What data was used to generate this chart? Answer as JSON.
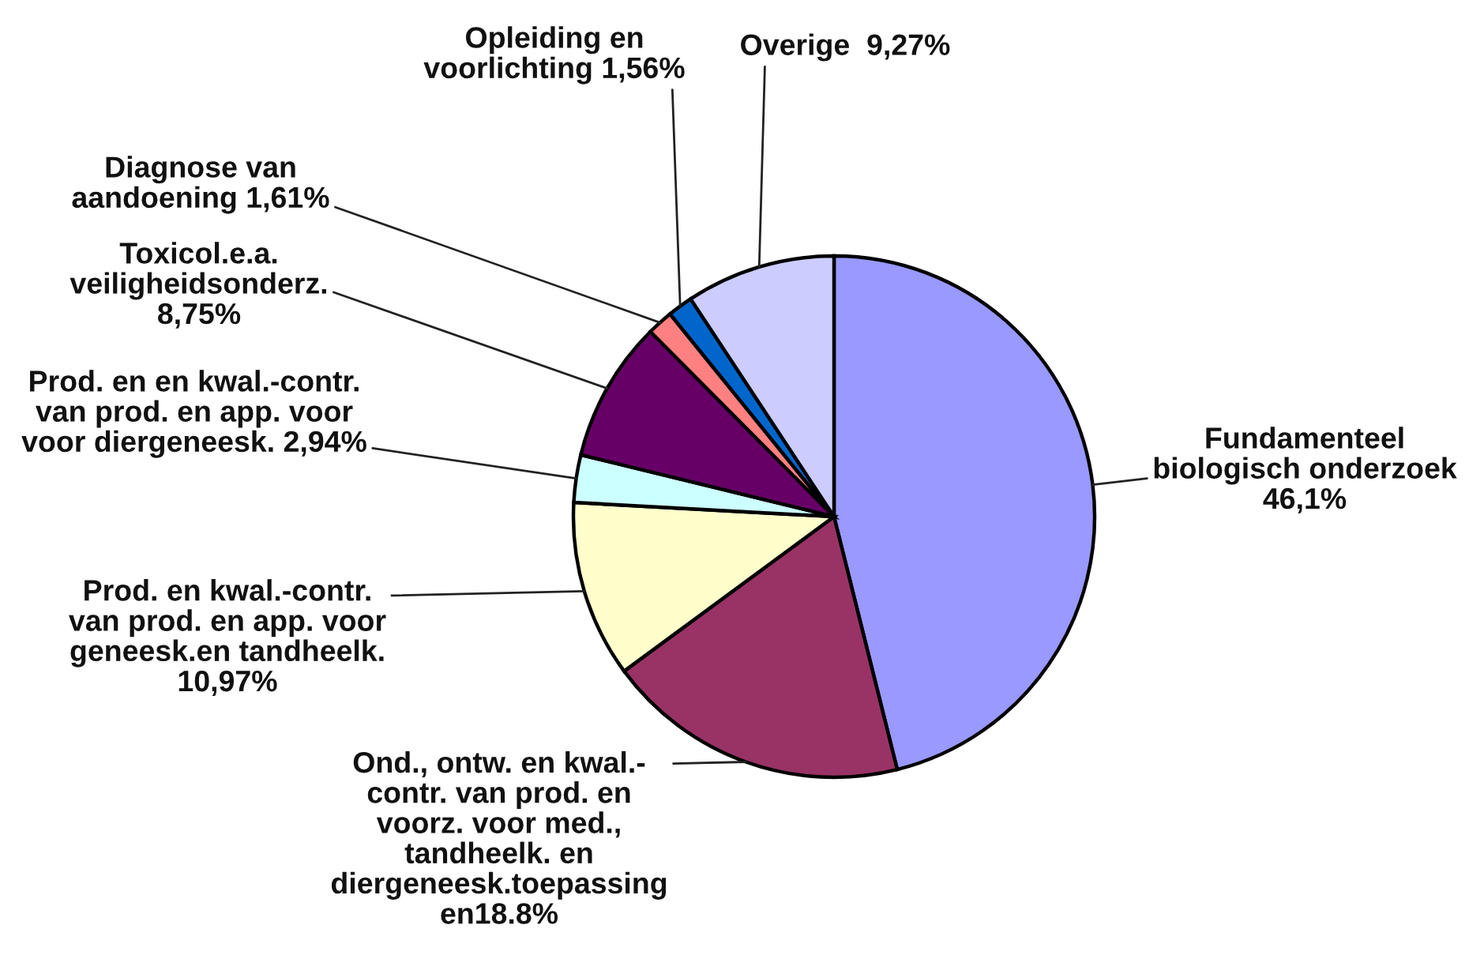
{
  "chart_data": {
    "type": "pie",
    "categories": [
      "Fundamenteel\nbiologisch onderzoek\n46,1%",
      "Ond., ontw. en kwal.-\ncontr. van prod. en\nvoorz. voor med.,\ntandheelk. en\ndiergeneesk.toepassing\nen18.8%",
      "Prod. en kwal.-contr.\nvan prod. en app. voor\ngeneesk.en tandheelk.\n10,97%",
      "Prod. en en kwal.-contr.\nvan prod. en app. voor\nvoor diergeneesk. 2,94%",
      "Toxicol.e.a.\nveiligheidsonderz.\n8,75%",
      "Diagnose van\naandoening 1,61%",
      "Opleiding en\nvoorlichting 1,56%",
      "Overige  9,27%"
    ],
    "values": [
      46.1,
      18.8,
      10.97,
      2.94,
      8.75,
      1.61,
      1.56,
      9.27
    ],
    "colors": [
      "#9999ff",
      "#993366",
      "#ffffcc",
      "#ccffff",
      "#660066",
      "#ff8080",
      "#0066cc",
      "#ccccff"
    ]
  }
}
